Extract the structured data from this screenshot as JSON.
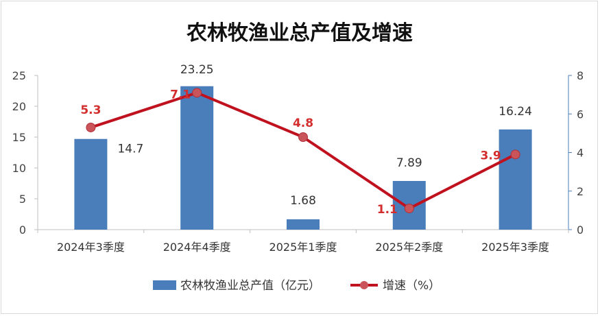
{
  "chart_data": {
    "type": "bar+line",
    "title": "农林牧渔业总产值及增速",
    "categories": [
      "2024年3季度",
      "2024年4季度",
      "2025年1季度",
      "2025年2季度",
      "2025年3季度"
    ],
    "series": [
      {
        "name": "农林牧渔业总产值（亿元）",
        "type": "bar",
        "axis": "left",
        "values": [
          14.7,
          23.25,
          1.68,
          7.89,
          16.24
        ],
        "labels": [
          "14.7",
          "23.25",
          "1.68",
          "7.89",
          "16.24"
        ],
        "color": "#4a7ebb"
      },
      {
        "name": "增速（%）",
        "type": "line",
        "axis": "right",
        "values": [
          5.3,
          7.1,
          4.8,
          1.1,
          3.9
        ],
        "labels": [
          "5.3",
          "7.1",
          "4.8",
          "1.1",
          "3.9"
        ],
        "color": "#c0111f",
        "label_color": "#d42d2d"
      }
    ],
    "y_left": {
      "range": [
        0,
        25
      ],
      "ticks": [
        0,
        5,
        10,
        15,
        20,
        25
      ]
    },
    "y_right": {
      "range": [
        0,
        8
      ],
      "ticks": [
        0,
        2,
        4,
        6,
        8
      ]
    },
    "grid": false,
    "legend": "bottom"
  }
}
